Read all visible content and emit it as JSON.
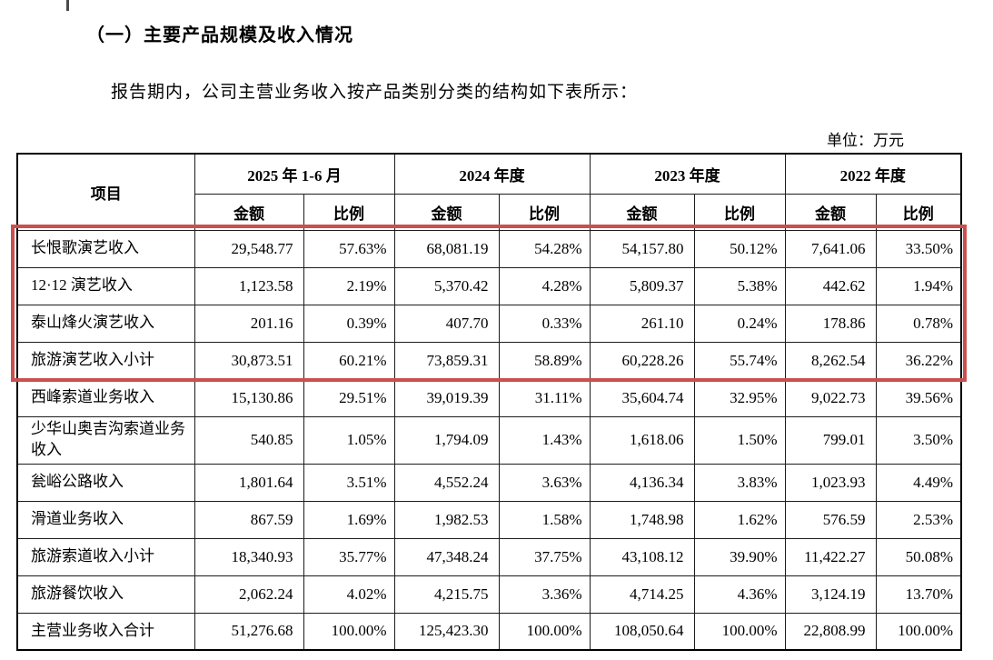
{
  "page": {
    "section_title": "（一）主要产品规模及收入情况",
    "intro": "报告期内，公司主营业务收入按产品类别分类的结构如下表所示：",
    "unit_label": "单位：万元"
  },
  "table": {
    "item_header": "项目",
    "period_headers": [
      "2025 年 1-6 月",
      "2024 年度",
      "2023 年度",
      "2022 年度"
    ],
    "sub_headers": {
      "amount": "金额",
      "ratio": "比例"
    },
    "highlight_color": "#c9504e",
    "highlighted_row_labels": [
      "长恨歌演艺收入",
      "12·12 演艺收入",
      "泰山烽火演艺收入",
      "旅游演艺收入小计"
    ],
    "rows": [
      {
        "label": "长恨歌演艺收入",
        "values": [
          "29,548.77",
          "57.63%",
          "68,081.19",
          "54.28%",
          "54,157.80",
          "50.12%",
          "7,641.06",
          "33.50%"
        ],
        "highlighted": true
      },
      {
        "label": "12·12 演艺收入",
        "values": [
          "1,123.58",
          "2.19%",
          "5,370.42",
          "4.28%",
          "5,809.37",
          "5.38%",
          "442.62",
          "1.94%"
        ],
        "highlighted": true
      },
      {
        "label": "泰山烽火演艺收入",
        "values": [
          "201.16",
          "0.39%",
          "407.70",
          "0.33%",
          "261.10",
          "0.24%",
          "178.86",
          "0.78%"
        ],
        "highlighted": true
      },
      {
        "label": "旅游演艺收入小计",
        "values": [
          "30,873.51",
          "60.21%",
          "73,859.31",
          "58.89%",
          "60,228.26",
          "55.74%",
          "8,262.54",
          "36.22%"
        ],
        "highlighted": true
      },
      {
        "label": "西峰索道业务收入",
        "values": [
          "15,130.86",
          "29.51%",
          "39,019.39",
          "31.11%",
          "35,604.74",
          "32.95%",
          "9,022.73",
          "39.56%"
        ],
        "highlighted": false
      },
      {
        "label": "少华山奥吉沟索道业务收入",
        "values": [
          "540.85",
          "1.05%",
          "1,794.09",
          "1.43%",
          "1,618.06",
          "1.50%",
          "799.01",
          "3.50%"
        ],
        "highlighted": false
      },
      {
        "label": "瓮峪公路收入",
        "values": [
          "1,801.64",
          "3.51%",
          "4,552.24",
          "3.63%",
          "4,136.34",
          "3.83%",
          "1,023.93",
          "4.49%"
        ],
        "highlighted": false
      },
      {
        "label": "滑道业务收入",
        "values": [
          "867.59",
          "1.69%",
          "1,982.53",
          "1.58%",
          "1,748.98",
          "1.62%",
          "576.59",
          "2.53%"
        ],
        "highlighted": false
      },
      {
        "label": "旅游索道收入小计",
        "values": [
          "18,340.93",
          "35.77%",
          "47,348.24",
          "37.75%",
          "43,108.12",
          "39.90%",
          "11,422.27",
          "50.08%"
        ],
        "highlighted": false
      },
      {
        "label": "旅游餐饮收入",
        "values": [
          "2,062.24",
          "4.02%",
          "4,215.75",
          "3.36%",
          "4,714.25",
          "4.36%",
          "3,124.19",
          "13.70%"
        ],
        "highlighted": false
      },
      {
        "label": "主营业务收入合计",
        "values": [
          "51,276.68",
          "100.00%",
          "125,423.30",
          "100.00%",
          "108,050.64",
          "100.00%",
          "22,808.99",
          "100.00%"
        ],
        "highlighted": false
      }
    ]
  }
}
